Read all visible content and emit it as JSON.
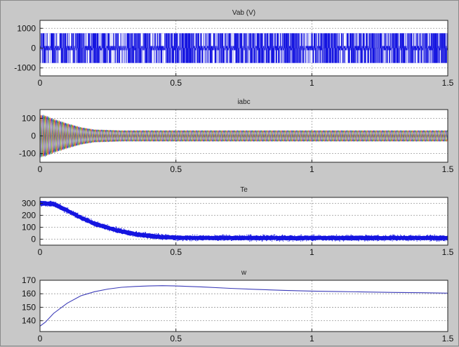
{
  "chart_data": [
    {
      "type": "line",
      "title": "Vab (V)",
      "xlim": [
        0,
        1.5
      ],
      "ylim": [
        -1400,
        1400
      ],
      "xticks": [
        0,
        0.5,
        1,
        1.5
      ],
      "xtick_labels": [
        "0",
        "0.5",
        "1",
        "1.5"
      ],
      "yticks": [
        1000,
        0,
        -1000
      ],
      "ytick_labels": [
        "1000",
        "0",
        "-1000"
      ],
      "grid": true,
      "series": [
        {
          "color": "#1515e0",
          "style": "pwm",
          "values_range": [
            -750,
            750
          ]
        }
      ]
    },
    {
      "type": "line",
      "title": "iabc",
      "xlim": [
        0,
        1.5
      ],
      "ylim": [
        -150,
        150
      ],
      "xticks": [
        0,
        0.5,
        1,
        1.5
      ],
      "xtick_labels": [
        "0",
        "0.5",
        "1",
        "1.5"
      ],
      "yticks": [
        100,
        0,
        -100
      ],
      "ytick_labels": [
        "100",
        "0",
        "-100"
      ],
      "grid": true,
      "series": [
        {
          "color": "#d64b1f",
          "style": "three-phase",
          "x": [
            0,
            0.02,
            0.05,
            0.1,
            0.15,
            0.2,
            0.3,
            0.5,
            1.0,
            1.5
          ],
          "amplitude": [
            120,
            115,
            95,
            70,
            48,
            35,
            30,
            30,
            30,
            30
          ]
        },
        {
          "color": "#2e8b2e",
          "style": "three-phase"
        },
        {
          "color": "#2828c8",
          "style": "three-phase"
        }
      ]
    },
    {
      "type": "line",
      "title": "Te",
      "xlim": [
        0,
        1.5
      ],
      "ylim": [
        -50,
        350
      ],
      "xticks": [
        0,
        0.5,
        1,
        1.5
      ],
      "xtick_labels": [
        "0",
        "0.5",
        "1",
        "1.5"
      ],
      "yticks": [
        300,
        200,
        100,
        0
      ],
      "ytick_labels": [
        "300",
        "200",
        "100",
        "0"
      ],
      "grid": true,
      "series": [
        {
          "color": "#1515e0",
          "style": "noisy-band",
          "x": [
            0,
            0.05,
            0.1,
            0.15,
            0.2,
            0.25,
            0.3,
            0.35,
            0.4,
            0.45,
            0.5,
            0.6,
            0.8,
            1.0,
            1.2,
            1.5
          ],
          "y": [
            300,
            295,
            240,
            180,
            130,
            95,
            65,
            42,
            28,
            18,
            12,
            10,
            10,
            10,
            10,
            10
          ],
          "band": 22
        }
      ]
    },
    {
      "type": "line",
      "title": "w",
      "xlim": [
        0,
        1.5
      ],
      "ylim": [
        132,
        170
      ],
      "xticks": [
        0,
        0.5,
        1,
        1.5
      ],
      "xtick_labels": [
        "0",
        "0.5",
        "1",
        "1.5"
      ],
      "yticks": [
        170,
        160,
        150,
        140
      ],
      "ytick_labels": [
        "170",
        "160",
        "150",
        "140"
      ],
      "grid": true,
      "series": [
        {
          "color": "#3b3bb8",
          "x": [
            0,
            0.02,
            0.05,
            0.1,
            0.15,
            0.2,
            0.25,
            0.3,
            0.35,
            0.4,
            0.45,
            0.5,
            0.6,
            0.7,
            0.8,
            0.9,
            1.0,
            1.1,
            1.2,
            1.3,
            1.4,
            1.5
          ],
          "y": [
            136,
            139,
            145.5,
            153,
            158.5,
            161.5,
            163.5,
            164.8,
            165.4,
            165.8,
            166,
            165.8,
            165,
            164,
            163.2,
            162.5,
            162,
            161.6,
            161.3,
            161,
            160.8,
            160.5
          ]
        }
      ]
    }
  ]
}
